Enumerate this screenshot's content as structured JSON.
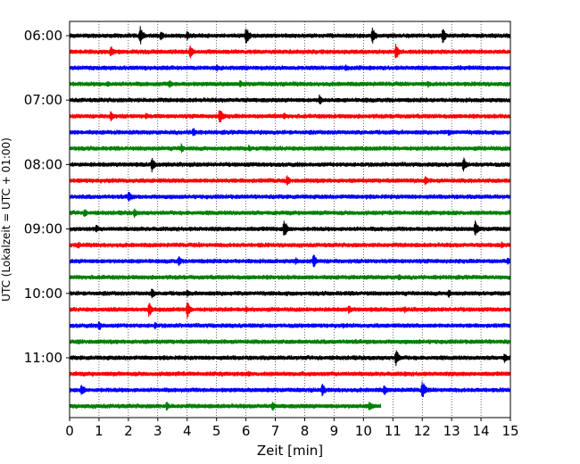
{
  "chart_data": {
    "type": "line",
    "title": "",
    "xlabel": "Zeit  [min]",
    "ylabel": "UTC (Lokalzeit = UTC + 01:00)",
    "xlim": [
      0,
      15
    ],
    "x_ticks": [
      0,
      1,
      2,
      3,
      4,
      5,
      6,
      7,
      8,
      9,
      10,
      11,
      12,
      13,
      14,
      15
    ],
    "y_tick_labels": [
      "06:00",
      "07:00",
      "08:00",
      "09:00",
      "10:00",
      "11:00"
    ],
    "grid": "vertical dotted",
    "color_cycle": [
      "#000000",
      "#ff0000",
      "#0000ff",
      "#008000"
    ],
    "series_unit_minutes": 15,
    "series": [
      {
        "start": "06:00",
        "color": "#000000",
        "end_min": 15,
        "events": [
          [
            2.4,
            1.0
          ],
          [
            3.1,
            0.6
          ],
          [
            4.0,
            0.5
          ],
          [
            6.0,
            1.0
          ],
          [
            10.3,
            0.9
          ],
          [
            12.7,
            0.8
          ]
        ]
      },
      {
        "start": "06:15",
        "color": "#ff0000",
        "end_min": 15,
        "events": [
          [
            1.4,
            0.6
          ],
          [
            4.1,
            0.7
          ],
          [
            11.1,
            0.9
          ]
        ]
      },
      {
        "start": "06:30",
        "color": "#0000ff",
        "end_min": 15,
        "events": [
          [
            5.0,
            0.4
          ],
          [
            9.4,
            0.4
          ],
          [
            10.2,
            0.3
          ],
          [
            13.3,
            0.3
          ]
        ]
      },
      {
        "start": "06:45",
        "color": "#008000",
        "end_min": 15,
        "events": [
          [
            1.3,
            0.4
          ],
          [
            3.4,
            0.5
          ],
          [
            5.8,
            0.4
          ],
          [
            12.2,
            0.4
          ]
        ]
      },
      {
        "start": "07:00",
        "color": "#000000",
        "end_min": 15,
        "events": [
          [
            8.5,
            0.6
          ],
          [
            10.1,
            0.3
          ]
        ]
      },
      {
        "start": "07:15",
        "color": "#ff0000",
        "end_min": 15,
        "events": [
          [
            1.4,
            0.6
          ],
          [
            2.6,
            0.4
          ],
          [
            5.1,
            0.9
          ],
          [
            7.3,
            0.4
          ]
        ]
      },
      {
        "start": "07:30",
        "color": "#0000ff",
        "end_min": 15,
        "events": [
          [
            4.2,
            0.6
          ],
          [
            6.5,
            0.3
          ],
          [
            12.9,
            0.4
          ]
        ]
      },
      {
        "start": "07:45",
        "color": "#008000",
        "end_min": 15,
        "events": [
          [
            3.8,
            0.5
          ],
          [
            6.1,
            0.4
          ],
          [
            6.7,
            0.3
          ]
        ]
      },
      {
        "start": "08:00",
        "color": "#000000",
        "end_min": 15,
        "events": [
          [
            2.8,
            0.8
          ],
          [
            13.4,
            0.8
          ]
        ]
      },
      {
        "start": "08:15",
        "color": "#ff0000",
        "end_min": 15,
        "events": [
          [
            7.4,
            0.6
          ],
          [
            12.1,
            0.6
          ]
        ]
      },
      {
        "start": "08:30",
        "color": "#0000ff",
        "end_min": 15,
        "events": [
          [
            2.0,
            0.7
          ],
          [
            10.1,
            0.3
          ]
        ]
      },
      {
        "start": "08:45",
        "color": "#008000",
        "end_min": 15,
        "events": [
          [
            0.5,
            0.5
          ],
          [
            2.2,
            0.5
          ]
        ]
      },
      {
        "start": "09:00",
        "color": "#000000",
        "end_min": 15,
        "events": [
          [
            0.9,
            0.5
          ],
          [
            7.3,
            1.0
          ],
          [
            13.8,
            0.8
          ]
        ]
      },
      {
        "start": "09:15",
        "color": "#ff0000",
        "end_min": 15,
        "events": [
          [
            0.3,
            0.4
          ],
          [
            4.4,
            0.3
          ],
          [
            6.5,
            0.3
          ],
          [
            14.7,
            0.4
          ]
        ]
      },
      {
        "start": "09:30",
        "color": "#0000ff",
        "end_min": 15,
        "events": [
          [
            3.7,
            0.6
          ],
          [
            7.7,
            0.4
          ],
          [
            8.3,
            0.8
          ],
          [
            14.9,
            0.4
          ]
        ]
      },
      {
        "start": "09:45",
        "color": "#008000",
        "end_min": 15,
        "events": [
          [
            1.1,
            0.3
          ],
          [
            11.2,
            0.4
          ]
        ]
      },
      {
        "start": "10:00",
        "color": "#000000",
        "end_min": 15,
        "events": [
          [
            2.8,
            0.6
          ],
          [
            4.0,
            0.4
          ],
          [
            12.9,
            0.5
          ]
        ]
      },
      {
        "start": "10:15",
        "color": "#ff0000",
        "end_min": 15,
        "events": [
          [
            2.7,
            0.8
          ],
          [
            4.0,
            0.9
          ],
          [
            6.0,
            0.4
          ],
          [
            9.5,
            0.5
          ],
          [
            11.4,
            0.4
          ]
        ]
      },
      {
        "start": "10:30",
        "color": "#0000ff",
        "end_min": 15,
        "events": [
          [
            1.0,
            0.6
          ],
          [
            2.9,
            0.4
          ],
          [
            9.3,
            0.3
          ]
        ]
      },
      {
        "start": "10:45",
        "color": "#008000",
        "end_min": 15,
        "events": [
          [
            0.3,
            0.3
          ],
          [
            11.9,
            0.3
          ]
        ]
      },
      {
        "start": "11:00",
        "color": "#000000",
        "end_min": 15,
        "events": [
          [
            11.1,
            0.9
          ],
          [
            14.8,
            0.6
          ]
        ]
      },
      {
        "start": "11:15",
        "color": "#ff0000",
        "end_min": 15,
        "events": [
          [
            0.2,
            0.3
          ],
          [
            3.7,
            0.3
          ],
          [
            6.1,
            0.3
          ],
          [
            11.4,
            0.3
          ]
        ]
      },
      {
        "start": "11:30",
        "color": "#0000ff",
        "end_min": 15,
        "events": [
          [
            0.4,
            0.7
          ],
          [
            8.6,
            0.7
          ],
          [
            10.7,
            0.6
          ],
          [
            12.0,
            1.0
          ]
        ]
      },
      {
        "start": "11:45",
        "color": "#008000",
        "end_min": 10.6,
        "events": [
          [
            3.3,
            0.5
          ],
          [
            6.9,
            0.5
          ],
          [
            10.2,
            0.6
          ]
        ]
      }
    ]
  }
}
